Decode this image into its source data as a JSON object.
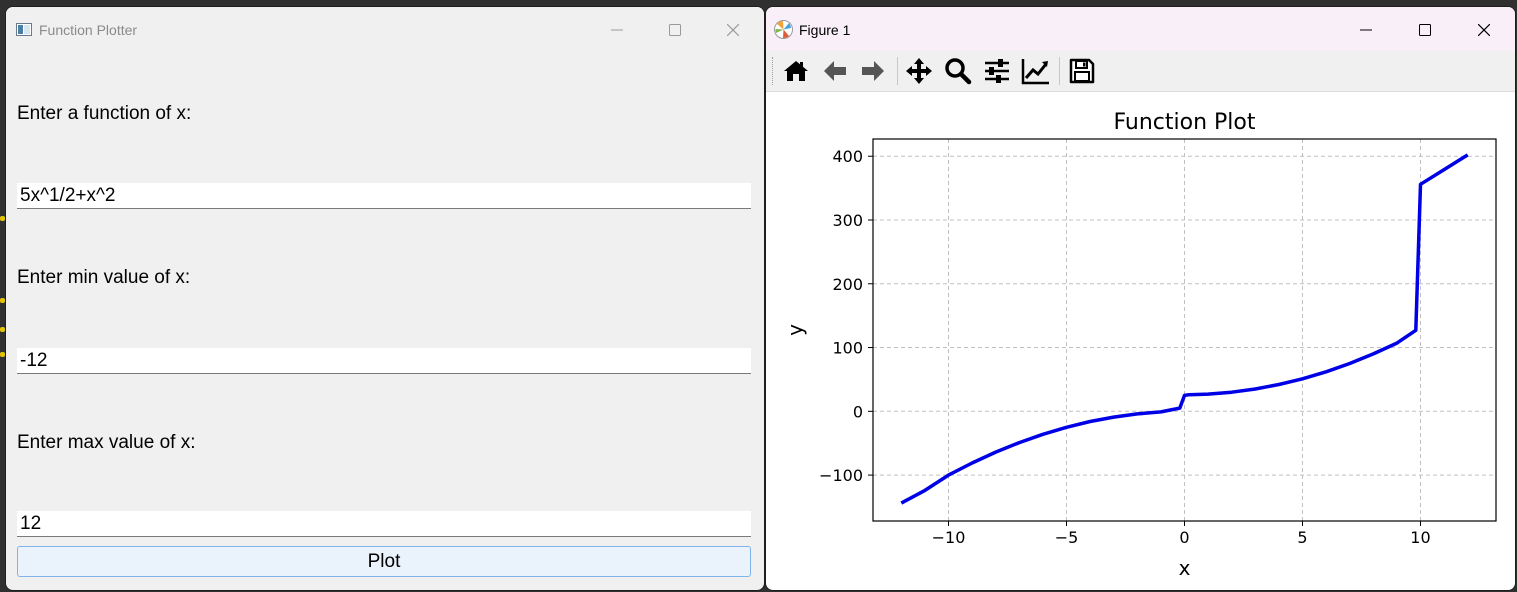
{
  "left_window": {
    "title": "Function Plotter",
    "function_label": "Enter a function of x:",
    "function_value": "5x^1/2+x^2",
    "min_label": "Enter min value of x:",
    "min_value": "-12",
    "max_label": "Enter max value of x:",
    "max_value": "12",
    "plot_button": "Plot"
  },
  "right_window": {
    "title": "Figure 1",
    "toolbar": [
      {
        "name": "home-icon",
        "tooltip": "Home"
      },
      {
        "name": "back-arrow-icon",
        "tooltip": "Back"
      },
      {
        "name": "forward-arrow-icon",
        "tooltip": "Forward"
      },
      {
        "name": "pan-icon",
        "tooltip": "Pan"
      },
      {
        "name": "zoom-icon",
        "tooltip": "Zoom"
      },
      {
        "name": "configure-subplots-icon",
        "tooltip": "Subplots"
      },
      {
        "name": "edit-axis-icon",
        "tooltip": "Customize"
      },
      {
        "name": "save-icon",
        "tooltip": "Save"
      }
    ]
  },
  "chart_data": {
    "type": "line",
    "title": "Function Plot",
    "xlabel": "x",
    "ylabel": "y",
    "xlim": [
      -13.2,
      13.2
    ],
    "ylim": [
      -172,
      427
    ],
    "xticks": [
      -10,
      -5,
      0,
      5,
      10
    ],
    "xtick_labels": [
      "−10",
      "−5",
      "0",
      "5",
      "10"
    ],
    "yticks": [
      -100,
      0,
      100,
      200,
      300,
      400
    ],
    "ytick_labels": [
      "−100",
      "0",
      "100",
      "200",
      "300",
      "400"
    ],
    "grid": true,
    "colors": {
      "line": "#0000e6",
      "grid": "#c0c0c0"
    },
    "series": [
      {
        "x": [
          -12,
          -11,
          -10,
          -9,
          -8,
          -7,
          -6,
          -5,
          -4,
          -3,
          -2,
          -1,
          -0.2,
          0,
          0.2,
          1,
          2,
          3,
          4,
          5,
          6,
          7,
          8,
          9,
          9.8,
          10,
          11,
          12
        ],
        "y": [
          -144,
          -124,
          -100,
          -81,
          -64,
          -49,
          -36,
          -25,
          -16,
          -9,
          -4,
          -1,
          5,
          25,
          26,
          27,
          30,
          35,
          42,
          51,
          62,
          75,
          90,
          107,
          127,
          356,
          379,
          402
        ]
      }
    ]
  }
}
